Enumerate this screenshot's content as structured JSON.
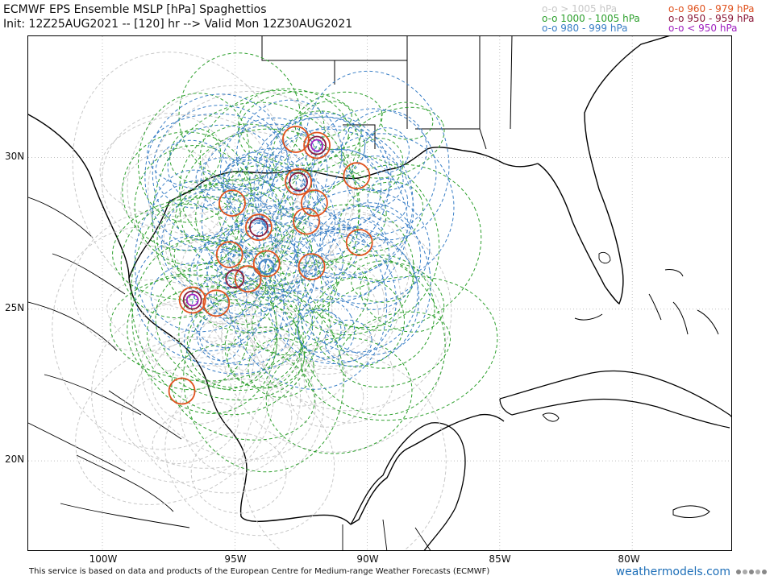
{
  "title": {
    "line1": "ECMWF EPS Ensemble MSLP [hPa] Spaghettios",
    "line2": "Init: 12Z25AUG2021 -- [120] hr --> Valid Mon 12Z30AUG2021"
  },
  "legend": [
    {
      "label": "o-o > 1005 hPa",
      "color": "#c8c8c8"
    },
    {
      "label": "o-o 1000 - 1005 hPa",
      "color": "#2ea02e"
    },
    {
      "label": "o-o 980 - 999 hPa",
      "color": "#3a7fc6"
    },
    {
      "label": "o-o 960 - 979 hPa",
      "color": "#e0531f"
    },
    {
      "label": "o-o 950 - 959 hPa",
      "color": "#8b1a3a"
    },
    {
      "label": "o-o < 950 hPa",
      "color": "#a020c0"
    }
  ],
  "axes": {
    "lat_labels": [
      "30N",
      "25N",
      "20N"
    ],
    "lon_labels": [
      "100W",
      "95W",
      "90W",
      "85W",
      "80W"
    ],
    "lon_range": [
      -102.8,
      -76.2
    ],
    "lat_range": [
      17.0,
      34.0
    ],
    "grid": "dotted"
  },
  "footer": "This service is based on data and products of the European Centre for Medium-range Weather Forecasts (ECMWF)",
  "brand": "weathermodels.com",
  "colors": {
    "coast": "#000000",
    "gray": "#c8c8c8",
    "green": "#2ea02e",
    "blue": "#3a7fc6",
    "orange": "#e0531f",
    "darkred": "#8b1a3a",
    "purple": "#a020c0"
  },
  "centers": [
    {
      "lon": -96.6,
      "lat": 25.3,
      "cat": "purple"
    },
    {
      "lon": -96.6,
      "lat": 25.3,
      "cat": "darkred"
    },
    {
      "lon": -96.6,
      "lat": 25.3,
      "cat": "orange"
    },
    {
      "lon": -95.7,
      "lat": 25.2,
      "cat": "orange"
    },
    {
      "lon": -97.0,
      "lat": 22.3,
      "cat": "orange"
    },
    {
      "lon": -94.1,
      "lat": 27.7,
      "cat": "darkred"
    },
    {
      "lon": -94.1,
      "lat": 27.7,
      "cat": "orange"
    },
    {
      "lon": -95.2,
      "lat": 26.8,
      "cat": "orange"
    },
    {
      "lon": -94.5,
      "lat": 26.0,
      "cat": "orange"
    },
    {
      "lon": -95.0,
      "lat": 26.0,
      "cat": "darkred"
    },
    {
      "lon": -93.8,
      "lat": 26.5,
      "cat": "orange"
    },
    {
      "lon": -93.8,
      "lat": 26.4,
      "cat": "blue"
    },
    {
      "lon": -92.1,
      "lat": 26.4,
      "cat": "orange"
    },
    {
      "lon": -91.9,
      "lat": 30.4,
      "cat": "purple"
    },
    {
      "lon": -91.9,
      "lat": 30.4,
      "cat": "darkred"
    },
    {
      "lon": -91.9,
      "lat": 30.4,
      "cat": "orange"
    },
    {
      "lon": -92.7,
      "lat": 30.6,
      "cat": "orange"
    },
    {
      "lon": -92.6,
      "lat": 29.2,
      "cat": "orange"
    },
    {
      "lon": -92.6,
      "lat": 29.2,
      "cat": "darkred"
    },
    {
      "lon": -92.0,
      "lat": 28.5,
      "cat": "orange"
    },
    {
      "lon": -92.3,
      "lat": 27.9,
      "cat": "orange"
    },
    {
      "lon": -90.3,
      "lat": 27.2,
      "cat": "orange"
    },
    {
      "lon": -95.1,
      "lat": 28.5,
      "cat": "orange"
    },
    {
      "lon": -90.4,
      "lat": 29.4,
      "cat": "orange"
    }
  ]
}
